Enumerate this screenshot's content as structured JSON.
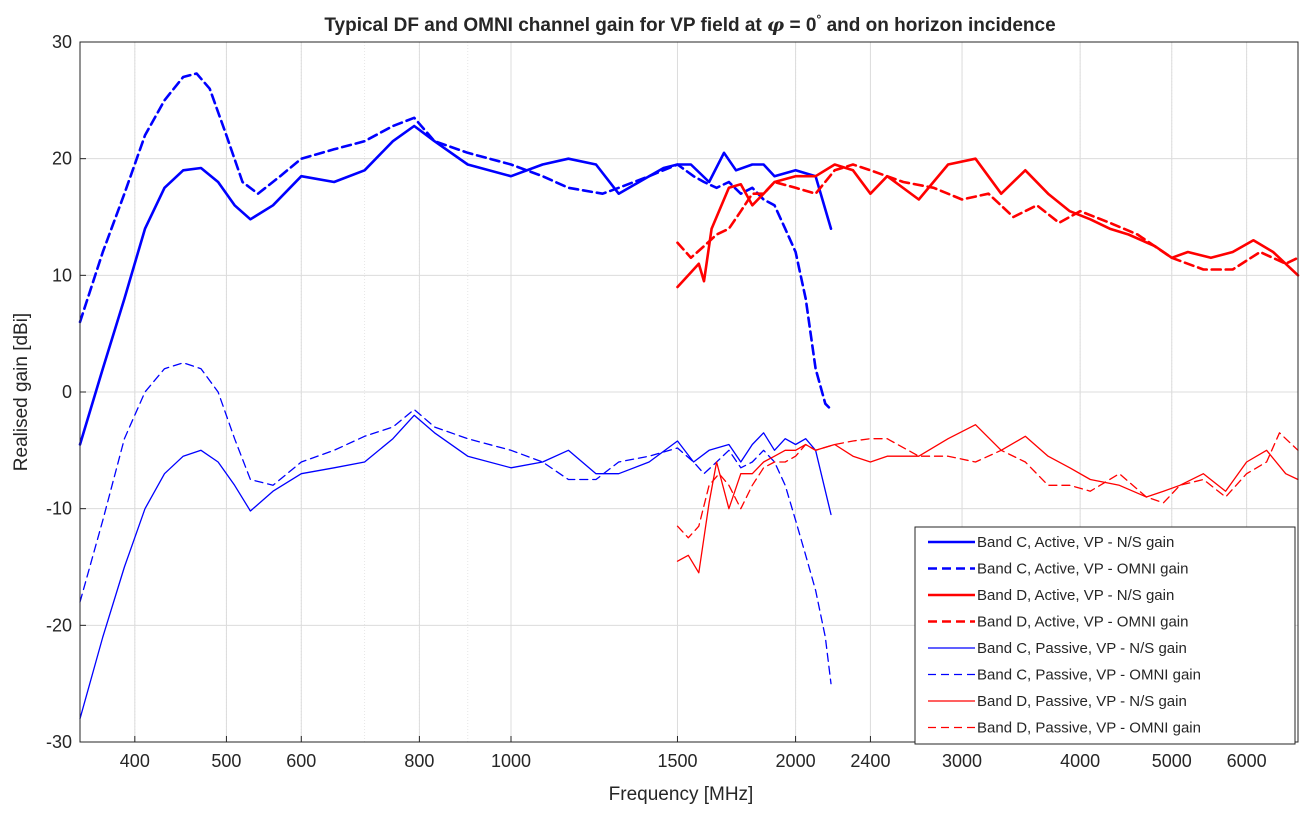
{
  "chart_data": {
    "type": "line",
    "title_prefix": "Typical DF and OMNI channel gain for VP field at ",
    "title_symbol": "φ",
    "title_middle": " = 0",
    "title_degree": "°",
    "title_suffix": " and on horizon incidence",
    "xlabel": "Frequency [MHz]",
    "ylabel": "Realised gain [dBi]",
    "xscale": "log",
    "xlim": [
      350,
      6800
    ],
    "ylim": [
      -30,
      30
    ],
    "xticks": [
      400,
      500,
      600,
      800,
      1000,
      1500,
      2000,
      2400,
      3000,
      4000,
      5000,
      6000
    ],
    "yticks": [
      -30,
      -20,
      -10,
      0,
      10,
      20,
      30
    ],
    "grid": true,
    "legend_position": "bottom-right",
    "series": [
      {
        "name": "Band C, Active, VP - N/S gain",
        "color": "#0000ff",
        "style": "solid",
        "weight": "thick",
        "x": [
          350,
          370,
          390,
          410,
          430,
          450,
          470,
          490,
          510,
          530,
          560,
          600,
          650,
          700,
          750,
          790,
          830,
          900,
          1000,
          1080,
          1150,
          1230,
          1300,
          1400,
          1450,
          1500,
          1550,
          1620,
          1680,
          1730,
          1800,
          1850,
          1900,
          2000,
          2100,
          2180
        ],
        "y": [
          -4.5,
          2,
          8,
          14,
          17.5,
          19,
          19.2,
          18,
          16,
          14.8,
          16,
          18.5,
          18,
          19,
          21.5,
          22.8,
          21.5,
          19.5,
          18.5,
          19.5,
          20,
          19.5,
          17,
          18.5,
          19.2,
          19.5,
          19.5,
          18,
          20.5,
          19,
          19.5,
          19.5,
          18.5,
          19,
          18.5,
          14
        ]
      },
      {
        "name": "Band C, Active, VP - OMNI gain",
        "color": "#0000ff",
        "style": "dashed",
        "weight": "thick",
        "x": [
          350,
          370,
          390,
          410,
          430,
          450,
          465,
          480,
          500,
          520,
          540,
          570,
          600,
          650,
          700,
          750,
          790,
          830,
          900,
          1000,
          1080,
          1150,
          1250,
          1300,
          1400,
          1500,
          1560,
          1600,
          1650,
          1700,
          1750,
          1800,
          1850,
          1900,
          1950,
          2000,
          2050,
          2100,
          2150,
          2180
        ],
        "y": [
          6,
          12,
          17,
          22,
          25,
          27,
          27.3,
          26,
          22,
          18,
          17,
          18.5,
          20,
          20.8,
          21.5,
          22.8,
          23.5,
          21.5,
          20.5,
          19.5,
          18.5,
          17.5,
          17,
          17.5,
          18.5,
          19.5,
          18.5,
          18,
          17.5,
          18,
          17,
          17.5,
          16.5,
          16,
          14,
          12,
          8,
          2,
          -1,
          -1.5
        ]
      },
      {
        "name": "Band D, Active, VP - N/S gain",
        "color": "#ff0000",
        "style": "solid",
        "weight": "thick",
        "x": [
          1500,
          1540,
          1580,
          1600,
          1630,
          1700,
          1750,
          1800,
          1850,
          1900,
          2000,
          2100,
          2200,
          2300,
          2400,
          2500,
          2700,
          2900,
          3100,
          3300,
          3500,
          3700,
          3900,
          4100,
          4300,
          4500,
          4800,
          5000,
          5200,
          5500,
          5800,
          6100,
          6400,
          6800
        ],
        "y": [
          9,
          10,
          11,
          9.5,
          14,
          17.5,
          17.8,
          16,
          17,
          18,
          18.5,
          18.5,
          19.5,
          19,
          17,
          18.5,
          16.5,
          19.5,
          20,
          17,
          19,
          17,
          15.5,
          14.8,
          14,
          13.5,
          12.5,
          11.5,
          12,
          11.5,
          12,
          13,
          12,
          10
        ]
      },
      {
        "name": "Band D, Active, VP - OMNI gain",
        "color": "#ff0000",
        "style": "dashed",
        "weight": "thick",
        "x": [
          1500,
          1550,
          1600,
          1650,
          1700,
          1750,
          1800,
          1850,
          1900,
          2000,
          2100,
          2200,
          2300,
          2400,
          2600,
          2800,
          3000,
          3200,
          3400,
          3600,
          3800,
          4000,
          4300,
          4600,
          5000,
          5400,
          5800,
          6200,
          6600,
          6800
        ],
        "y": [
          12.8,
          11.5,
          12.5,
          13.5,
          14,
          15.5,
          17,
          17,
          18,
          17.5,
          17,
          19,
          19.5,
          19,
          18,
          17.5,
          16.5,
          17,
          15,
          16,
          14.5,
          15.5,
          14.5,
          13.5,
          11.5,
          10.5,
          10.5,
          12,
          11,
          11.5
        ]
      },
      {
        "name": "Band C, Passive, VP - N/S gain",
        "color": "#0000ff",
        "style": "solid",
        "weight": "thin",
        "x": [
          350,
          370,
          390,
          410,
          430,
          450,
          470,
          490,
          510,
          530,
          560,
          600,
          650,
          700,
          750,
          790,
          830,
          900,
          1000,
          1080,
          1150,
          1230,
          1300,
          1400,
          1500,
          1560,
          1620,
          1700,
          1750,
          1800,
          1850,
          1900,
          1950,
          2000,
          2050,
          2100,
          2180
        ],
        "y": [
          -28,
          -21,
          -15,
          -10,
          -7,
          -5.5,
          -5,
          -6,
          -8,
          -10.2,
          -8.5,
          -7,
          -6.5,
          -6,
          -4,
          -2,
          -3.5,
          -5.5,
          -6.5,
          -6,
          -5,
          -7,
          -7,
          -6,
          -4.2,
          -6,
          -5,
          -4.5,
          -6,
          -4.5,
          -3.5,
          -5,
          -4,
          -4.5,
          -4,
          -5,
          -10.5
        ]
      },
      {
        "name": "Band C, Passive, VP - OMNI gain",
        "color": "#0000ff",
        "style": "dashed",
        "weight": "thin",
        "x": [
          350,
          370,
          390,
          410,
          430,
          450,
          470,
          490,
          510,
          530,
          560,
          600,
          650,
          700,
          750,
          790,
          830,
          900,
          1000,
          1080,
          1150,
          1230,
          1300,
          1400,
          1500,
          1560,
          1600,
          1650,
          1700,
          1750,
          1800,
          1850,
          1900,
          1950,
          2000,
          2050,
          2100,
          2150,
          2180
        ],
        "y": [
          -18,
          -11,
          -4,
          0,
          2,
          2.5,
          2,
          0,
          -4,
          -7.5,
          -8,
          -6,
          -5,
          -3.8,
          -3,
          -1.5,
          -3,
          -4,
          -5,
          -6,
          -7.5,
          -7.5,
          -6,
          -5.5,
          -4.8,
          -6,
          -7,
          -6,
          -5,
          -6.5,
          -6,
          -5,
          -6,
          -8,
          -11,
          -14,
          -17,
          -21,
          -25
        ]
      },
      {
        "name": "Band D, Passive, VP - N/S gain",
        "color": "#ff0000",
        "style": "solid",
        "weight": "thin",
        "x": [
          1500,
          1540,
          1580,
          1620,
          1650,
          1700,
          1750,
          1800,
          1850,
          1900,
          1950,
          2000,
          2050,
          2100,
          2200,
          2300,
          2400,
          2500,
          2700,
          2900,
          3100,
          3300,
          3500,
          3700,
          3900,
          4100,
          4400,
          4700,
          4900,
          5100,
          5400,
          5700,
          6000,
          6300,
          6600,
          6800
        ],
        "y": [
          -14.5,
          -14,
          -15.5,
          -9.5,
          -6,
          -10,
          -7,
          -7,
          -6,
          -5.5,
          -5,
          -5,
          -4.5,
          -5,
          -4.5,
          -5.5,
          -6,
          -5.5,
          -5.5,
          -4,
          -2.8,
          -5,
          -3.8,
          -5.5,
          -6.5,
          -7.5,
          -8,
          -9,
          -8.5,
          -8,
          -7,
          -8.5,
          -6,
          -5,
          -7,
          -7.5
        ]
      },
      {
        "name": "Band D, Passive, VP - OMNI gain",
        "color": "#ff0000",
        "style": "dashed",
        "weight": "thin",
        "x": [
          1500,
          1540,
          1580,
          1620,
          1660,
          1700,
          1750,
          1800,
          1850,
          1900,
          1950,
          2000,
          2050,
          2100,
          2200,
          2300,
          2400,
          2500,
          2700,
          2900,
          3100,
          3300,
          3500,
          3700,
          3900,
          4100,
          4400,
          4700,
          4900,
          5100,
          5400,
          5700,
          6000,
          6300,
          6500,
          6800
        ],
        "y": [
          -11.5,
          -12.5,
          -11.5,
          -8,
          -7,
          -8,
          -10,
          -8,
          -6.5,
          -6,
          -6,
          -5.5,
          -4.5,
          -5,
          -4.5,
          -4.2,
          -4,
          -4,
          -5.5,
          -5.5,
          -6,
          -5,
          -6,
          -8,
          -8,
          -8.5,
          -7,
          -9,
          -9.5,
          -8,
          -7.5,
          -9,
          -7,
          -6,
          -3.5,
          -5
        ]
      }
    ]
  }
}
